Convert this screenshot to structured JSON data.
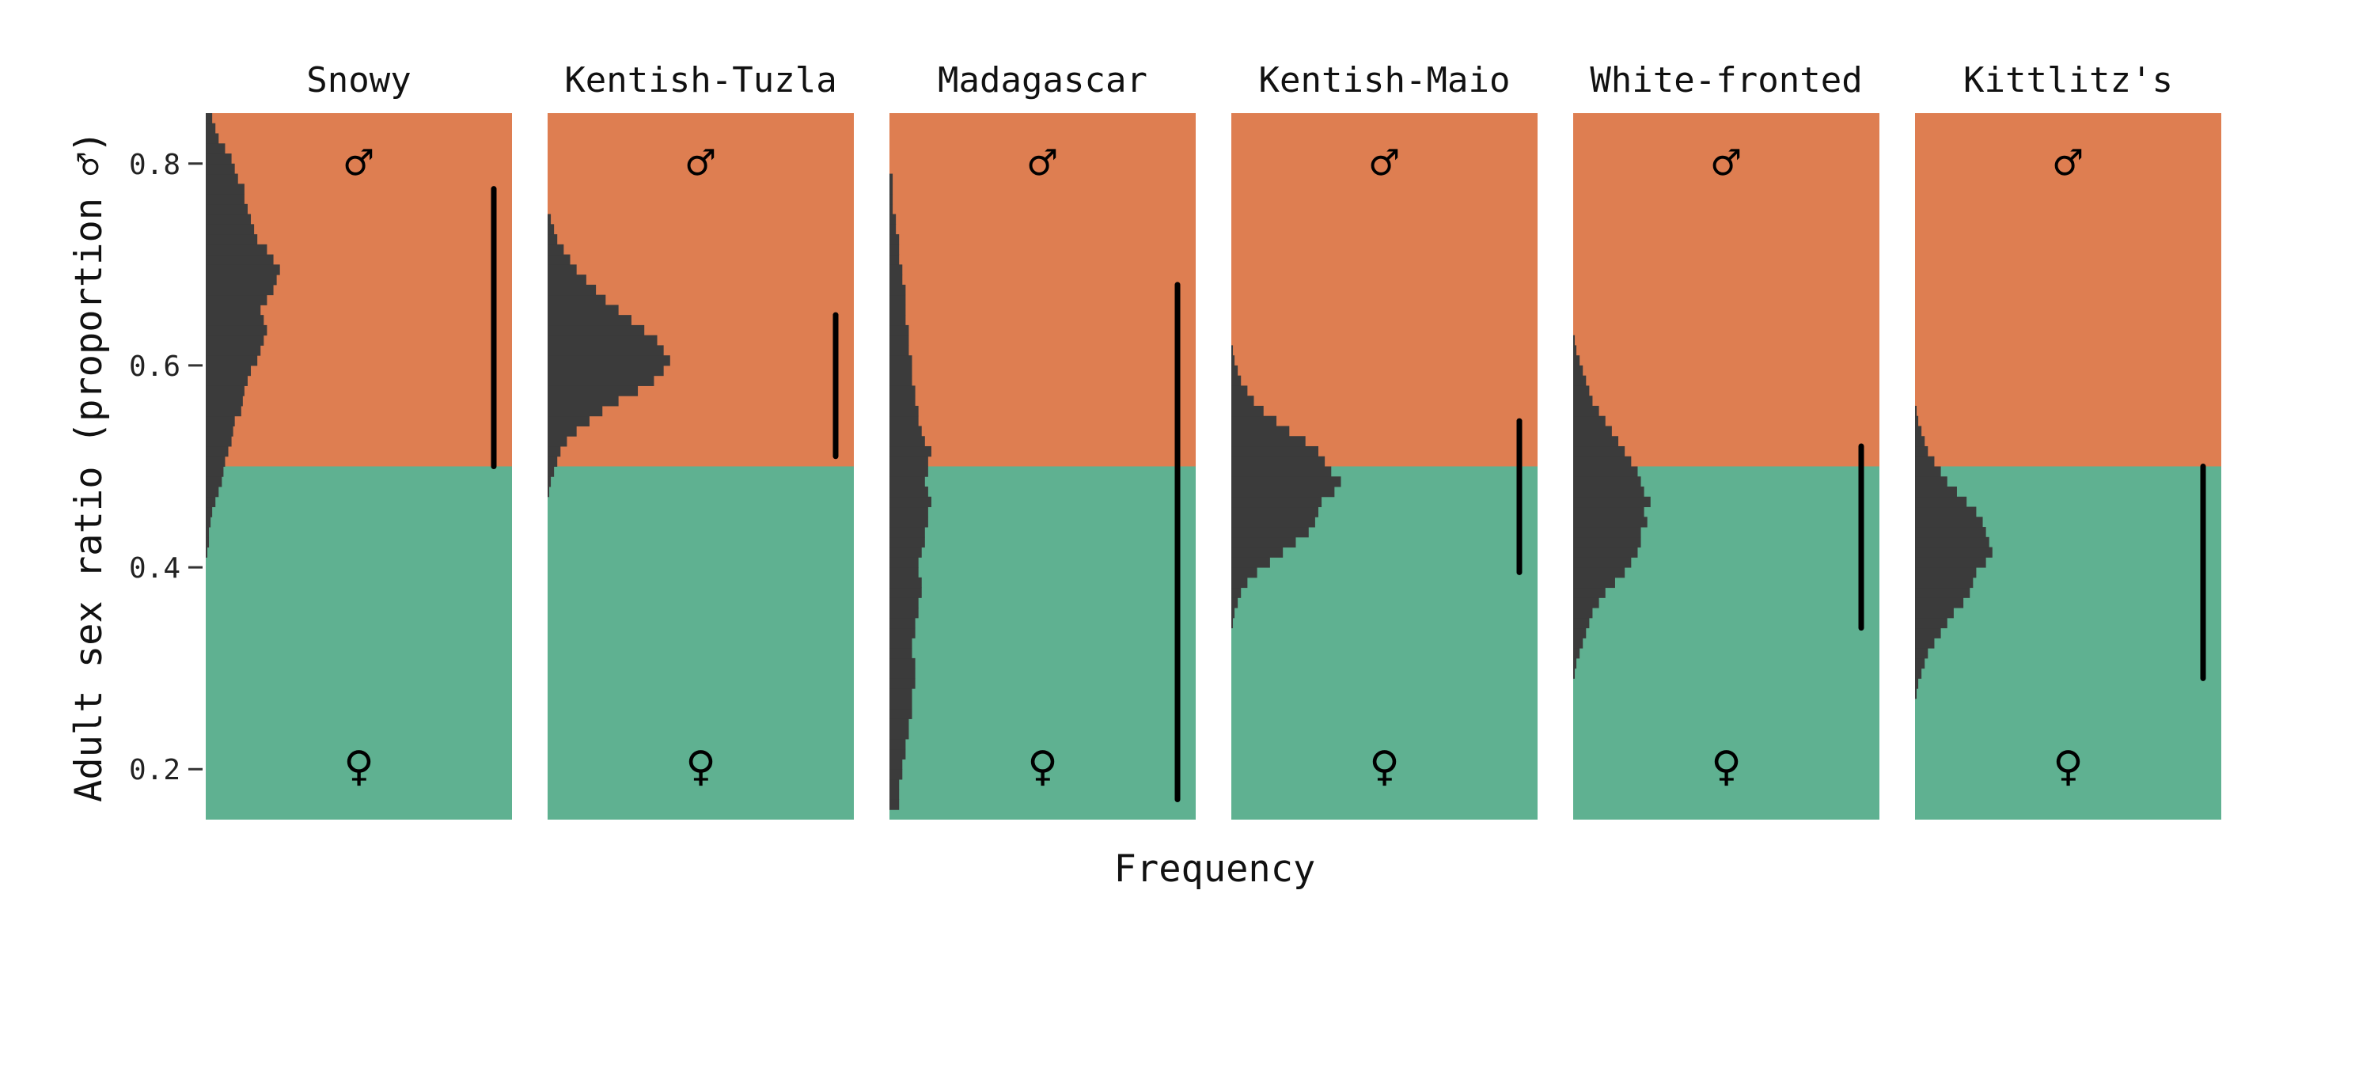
{
  "colors": {
    "male_region": "#de7e51",
    "female_region": "#5fb191",
    "histogram": "#3b3b3b",
    "interval": "#000000"
  },
  "chart_data": {
    "type": "histogram-panels",
    "ylabel": "Adult sex ratio (proportion ♂)",
    "xlabel": "Frequency",
    "ylim": [
      0.15,
      0.85
    ],
    "yticks": [
      0.2,
      0.4,
      0.6,
      0.8
    ],
    "ytick_labels": [
      "0.2",
      "0.4",
      "0.6",
      "0.8"
    ],
    "threshold": 0.5,
    "male_symbol": "♂",
    "female_symbol": "♀",
    "bin_width": 0.01,
    "grid": false,
    "panels": [
      {
        "title": "Snowy",
        "bins_start": 0.41,
        "counts": [
          0.5,
          1,
          1,
          1.5,
          2,
          3,
          4,
          5,
          5.5,
          6,
          7,
          8,
          8.5,
          9,
          11,
          11.5,
          12,
          13,
          14,
          16,
          17,
          18,
          19,
          18,
          17,
          19,
          21,
          22,
          23,
          21,
          19,
          16,
          15,
          14,
          13,
          12,
          12,
          10,
          9,
          8,
          6,
          4,
          3,
          2,
          1
        ],
        "interval": [
          0.5,
          0.775
        ]
      },
      {
        "title": "Kentish-Tuzla",
        "bins_start": 0.47,
        "counts": [
          0.5,
          1,
          2,
          3,
          4,
          6,
          9,
          13,
          17,
          22,
          28,
          33,
          36,
          38,
          36,
          34,
          30,
          26,
          22,
          18,
          15,
          12,
          9,
          7,
          5,
          3,
          2,
          1
        ],
        "interval": [
          0.51,
          0.65
        ]
      },
      {
        "title": "Madagascar",
        "bins_start": 0.16,
        "counts": [
          3,
          3,
          3,
          4,
          4,
          5,
          5,
          6,
          6,
          7,
          7,
          7,
          8,
          8,
          8,
          7,
          7,
          8,
          8,
          9,
          9,
          10,
          10,
          9,
          9,
          10,
          11,
          11,
          12,
          12,
          13,
          12,
          11,
          12,
          12,
          13,
          11,
          10,
          9,
          9,
          8,
          8,
          7,
          7,
          7,
          6,
          6,
          6,
          5,
          5,
          5,
          5,
          4,
          4,
          3,
          3,
          3,
          2,
          2,
          1,
          1,
          1,
          1
        ],
        "interval": [
          0.17,
          0.68
        ]
      },
      {
        "title": "Kentish-Maio",
        "bins_start": 0.34,
        "counts": [
          0.5,
          1,
          2,
          3,
          5,
          8,
          12,
          16,
          20,
          24,
          26,
          27,
          28,
          32,
          34,
          31,
          29,
          27,
          23,
          18,
          14,
          10,
          7,
          5,
          3,
          2,
          1,
          0.5
        ],
        "interval": [
          0.395,
          0.545
        ]
      },
      {
        "title": "White-fronted",
        "bins_start": 0.29,
        "counts": [
          0.5,
          1,
          2,
          3,
          4,
          5,
          6,
          8,
          10,
          13,
          16,
          18,
          20,
          21,
          21,
          23,
          22,
          24,
          22,
          21,
          20,
          18,
          16,
          14,
          12,
          10,
          8,
          6,
          5,
          4,
          3,
          2,
          1,
          0.5
        ],
        "interval": [
          0.34,
          0.52
        ]
      },
      {
        "title": "Kittlitz's",
        "bins_start": 0.27,
        "counts": [
          0.5,
          1,
          2,
          3,
          4,
          6,
          8,
          10,
          12,
          15,
          17,
          18,
          19,
          22,
          24,
          23,
          22,
          21,
          19,
          16,
          13,
          10,
          8,
          6,
          4,
          3,
          2,
          1,
          0.5
        ],
        "interval": [
          0.29,
          0.5
        ]
      }
    ]
  }
}
